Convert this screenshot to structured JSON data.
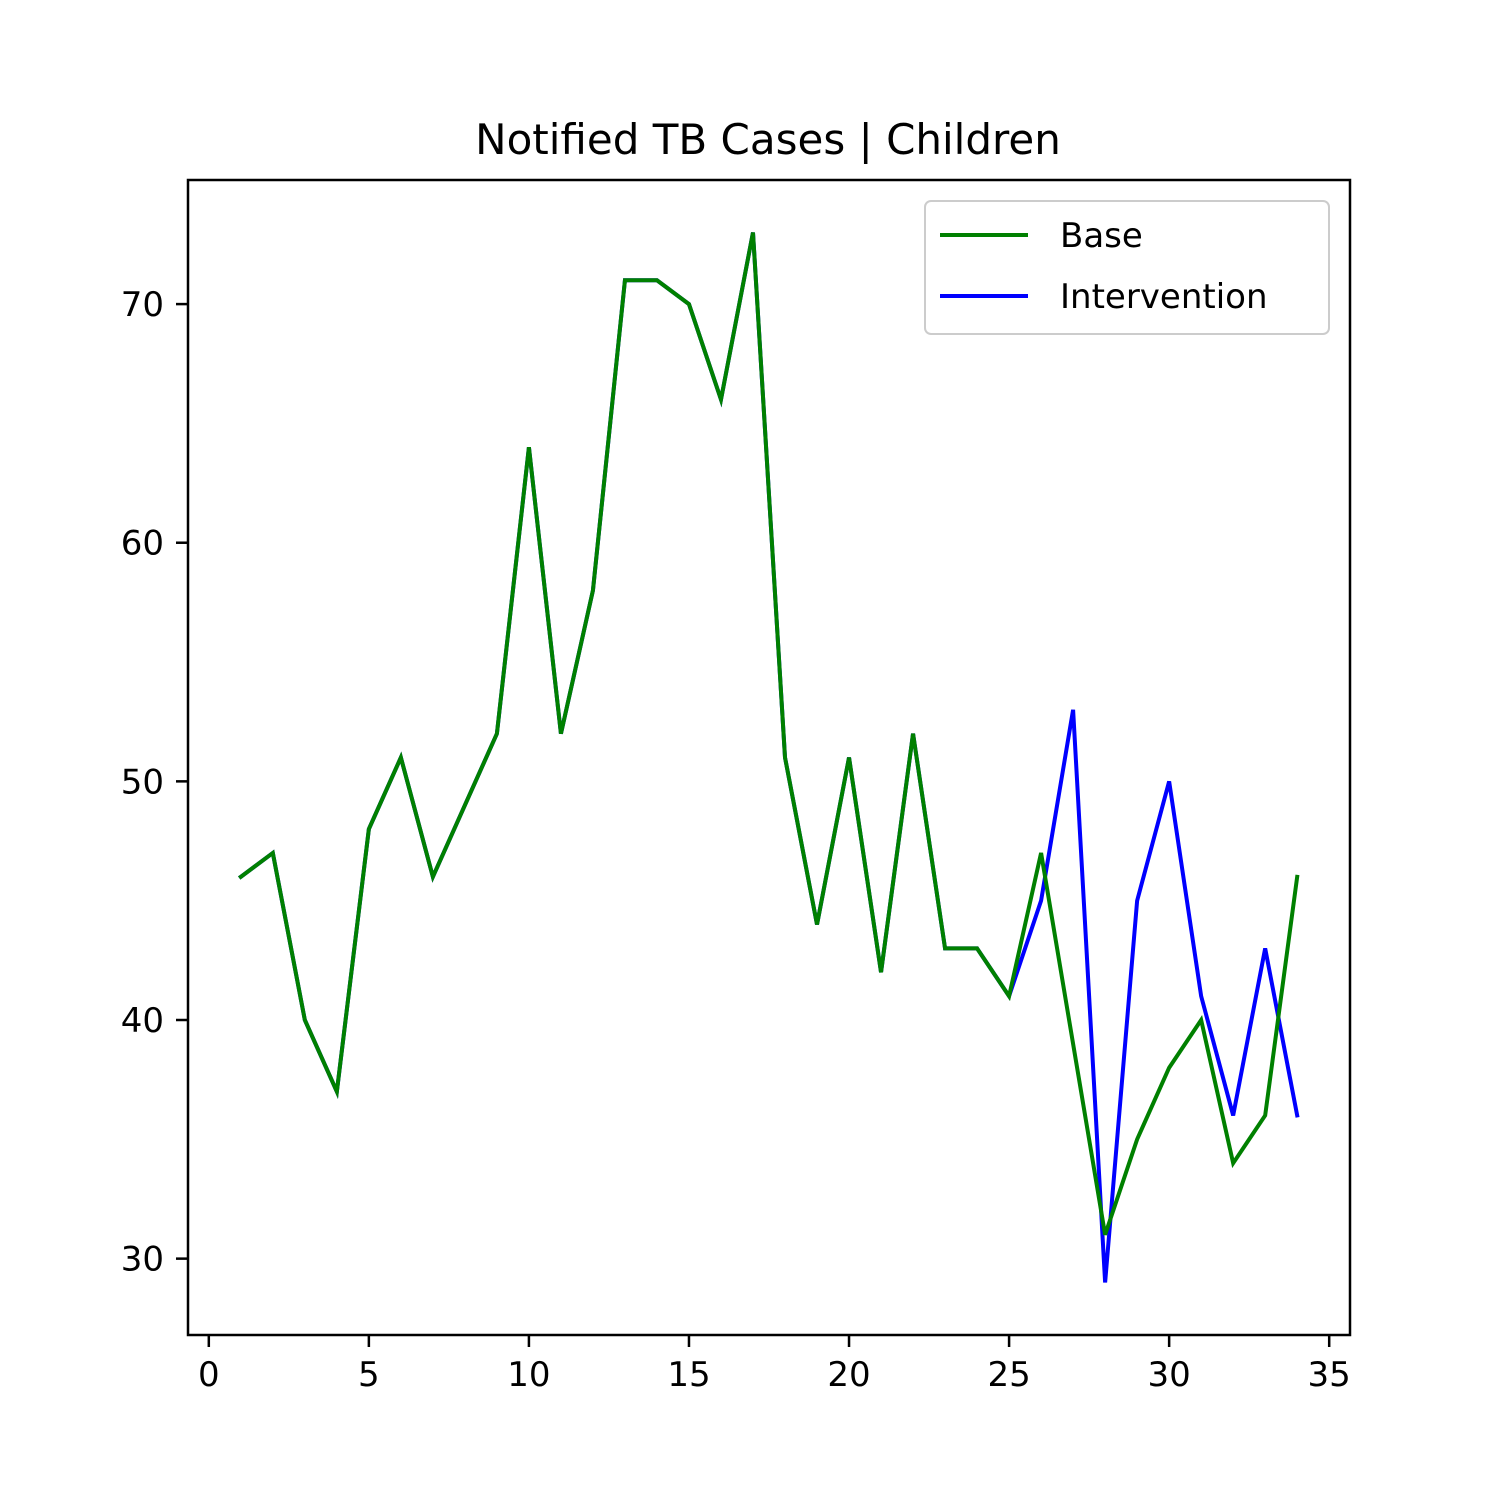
{
  "chart_data": {
    "type": "line",
    "title": "Notified TB Cases | Children",
    "xlabel": "",
    "ylabel": "",
    "xlim": [
      -0.65,
      35.65
    ],
    "ylim": [
      26.8,
      75.2
    ],
    "xticks": [
      0,
      5,
      10,
      15,
      20,
      25,
      30,
      35
    ],
    "yticks": [
      30,
      40,
      50,
      60,
      70
    ],
    "grid": false,
    "legend_position": "top-right",
    "x": [
      1,
      2,
      3,
      4,
      5,
      6,
      7,
      8,
      9,
      10,
      11,
      12,
      13,
      14,
      15,
      16,
      17,
      18,
      19,
      20,
      21,
      22,
      23,
      24,
      25,
      26,
      27,
      28,
      29,
      30,
      31,
      32,
      33,
      34
    ],
    "series": [
      {
        "name": "Base",
        "color": "#008000",
        "values": [
          46,
          47,
          40,
          37,
          48,
          51,
          46,
          49,
          52,
          64,
          52,
          58,
          71,
          71,
          70,
          66,
          73,
          51,
          44,
          51,
          42,
          52,
          43,
          43,
          41,
          47,
          39,
          31,
          35,
          38,
          40,
          34,
          36,
          46
        ]
      },
      {
        "name": "Intervention",
        "color": "#0000ff",
        "values": [
          46,
          47,
          40,
          37,
          48,
          51,
          46,
          49,
          52,
          64,
          52,
          58,
          71,
          71,
          70,
          66,
          73,
          51,
          44,
          51,
          42,
          52,
          43,
          43,
          41,
          45,
          53,
          29,
          45,
          50,
          41,
          36,
          43,
          36
        ]
      }
    ]
  }
}
